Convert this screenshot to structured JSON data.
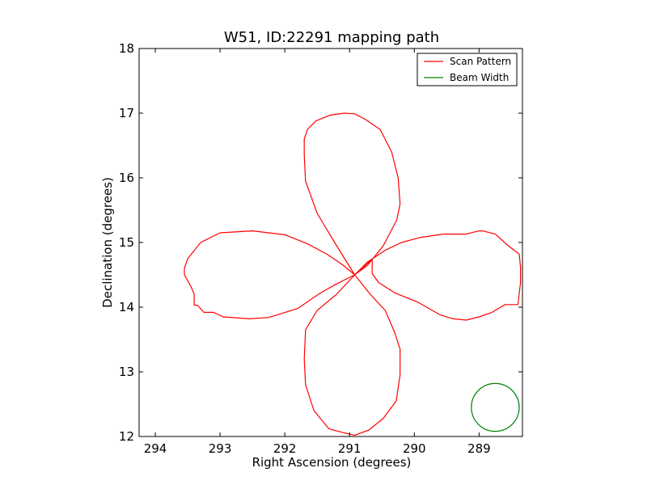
{
  "chart_data": {
    "type": "line",
    "title": "W51, ID:22291 mapping path",
    "xlabel": "Right Ascension (degrees)",
    "ylabel": "Declination (degrees)",
    "xlim": [
      294.25,
      288.33
    ],
    "ylim": [
      12,
      18
    ],
    "x_ticks": [
      294,
      293,
      292,
      291,
      290,
      289
    ],
    "y_ticks": [
      12,
      13,
      14,
      15,
      16,
      17,
      18
    ],
    "grid": false,
    "legend_position": "top-right",
    "series": [
      {
        "name": "Scan Pattern",
        "color": "#ff0000",
        "x": [
          290.92,
          291.2,
          291.5,
          291.68,
          291.7,
          291.7,
          291.65,
          291.52,
          291.3,
          291.08,
          290.92,
          290.75,
          290.53,
          290.35,
          290.25,
          290.22,
          290.27,
          290.48,
          290.72,
          290.92,
          291.1,
          291.35,
          291.65,
          292.0,
          292.5,
          293.0,
          293.3,
          293.5,
          293.55,
          293.55,
          293.45,
          293.4,
          293.4,
          293.35,
          293.25,
          293.1,
          292.95,
          292.55,
          292.25,
          291.8,
          291.45,
          291.2,
          290.92,
          290.72,
          290.45,
          290.2,
          289.9,
          289.55,
          289.2,
          289.0,
          288.95,
          288.95,
          288.75,
          288.55,
          288.38,
          288.36,
          288.36,
          288.36,
          288.4,
          288.6,
          288.8,
          289.0,
          289.2,
          289.4,
          289.6,
          289.6,
          289.95,
          290.3,
          290.55,
          290.65,
          290.65,
          290.92,
          290.68,
          290.45,
          290.3,
          290.22,
          290.22,
          290.28,
          290.48,
          290.7,
          290.92,
          291.1,
          291.32,
          291.55,
          291.68,
          291.7,
          291.68,
          291.5,
          291.2,
          290.92
        ],
        "y": [
          14.5,
          14.95,
          15.45,
          15.95,
          16.35,
          16.6,
          16.75,
          16.88,
          16.97,
          17.0,
          16.99,
          16.9,
          16.75,
          16.4,
          16.0,
          15.6,
          15.35,
          14.95,
          14.65,
          14.5,
          14.65,
          14.82,
          14.98,
          15.12,
          15.18,
          15.15,
          15.0,
          14.75,
          14.6,
          14.5,
          14.32,
          14.2,
          14.03,
          14.03,
          13.92,
          13.92,
          13.85,
          13.82,
          13.84,
          13.98,
          14.22,
          14.36,
          14.5,
          14.7,
          14.88,
          15.0,
          15.08,
          15.13,
          15.13,
          15.18,
          15.18,
          15.18,
          15.13,
          14.95,
          14.82,
          14.62,
          14.5,
          14.38,
          14.04,
          14.04,
          13.92,
          13.85,
          13.8,
          13.82,
          13.88,
          13.88,
          14.08,
          14.22,
          14.38,
          14.52,
          14.74,
          14.5,
          14.2,
          13.95,
          13.6,
          13.35,
          12.95,
          12.55,
          12.28,
          12.1,
          12.02,
          12.06,
          12.12,
          12.4,
          12.8,
          13.2,
          13.65,
          13.95,
          14.2,
          14.5
        ]
      },
      {
        "name": "Beam Width",
        "color": "#008000",
        "type": "circle",
        "center_x": 288.75,
        "center_y": 12.45,
        "radius_deg_y": 0.37
      }
    ]
  }
}
